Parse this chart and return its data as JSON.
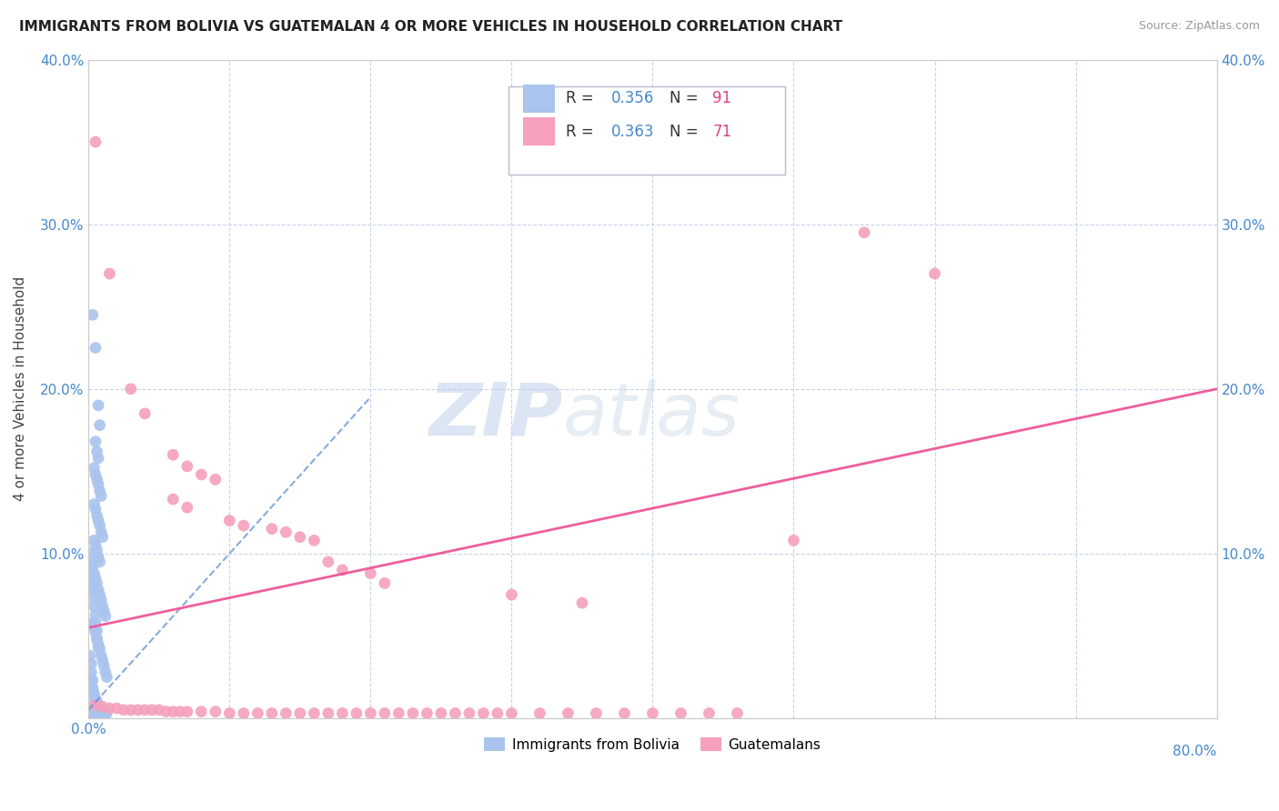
{
  "title": "IMMIGRANTS FROM BOLIVIA VS GUATEMALAN 4 OR MORE VEHICLES IN HOUSEHOLD CORRELATION CHART",
  "source": "Source: ZipAtlas.com",
  "ylabel": "4 or more Vehicles in Household",
  "xlim": [
    0.0,
    0.8
  ],
  "ylim": [
    0.0,
    0.4
  ],
  "xtick_labels": [
    "0.0%",
    "",
    "",
    "",
    "",
    "",
    "",
    "",
    "80.0%"
  ],
  "xtick_vals": [
    0.0,
    0.1,
    0.2,
    0.3,
    0.4,
    0.5,
    0.6,
    0.7,
    0.8
  ],
  "ytick_labels": [
    "",
    "10.0%",
    "20.0%",
    "30.0%",
    "40.0%"
  ],
  "ytick_vals": [
    0.0,
    0.1,
    0.2,
    0.3,
    0.4
  ],
  "right_ytick_labels": [
    "",
    "10.0%",
    "20.0%",
    "30.0%",
    "40.0%"
  ],
  "bolivia_R": 0.356,
  "bolivia_N": 91,
  "guatemalan_R": 0.363,
  "guatemalan_N": 71,
  "bolivia_color": "#aac4ee",
  "guatemalan_color": "#f5a0bc",
  "bolivia_line_color": "#5588cc",
  "guatemalan_line_color": "#ee5599",
  "legend_R_color": "#4488cc",
  "legend_N_color": "#dd4488",
  "watermark": "ZIPatlas",
  "background_color": "#ffffff",
  "grid_color": "#c8d4e8",
  "bolivia_scatter": [
    [
      0.003,
      0.245
    ],
    [
      0.005,
      0.225
    ],
    [
      0.007,
      0.19
    ],
    [
      0.008,
      0.178
    ],
    [
      0.005,
      0.168
    ],
    [
      0.006,
      0.162
    ],
    [
      0.007,
      0.158
    ],
    [
      0.004,
      0.152
    ],
    [
      0.005,
      0.148
    ],
    [
      0.006,
      0.145
    ],
    [
      0.007,
      0.142
    ],
    [
      0.008,
      0.138
    ],
    [
      0.009,
      0.135
    ],
    [
      0.004,
      0.13
    ],
    [
      0.005,
      0.127
    ],
    [
      0.006,
      0.123
    ],
    [
      0.007,
      0.12
    ],
    [
      0.008,
      0.117
    ],
    [
      0.009,
      0.113
    ],
    [
      0.01,
      0.11
    ],
    [
      0.004,
      0.108
    ],
    [
      0.005,
      0.105
    ],
    [
      0.006,
      0.102
    ],
    [
      0.007,
      0.098
    ],
    [
      0.008,
      0.095
    ],
    [
      0.003,
      0.092
    ],
    [
      0.004,
      0.088
    ],
    [
      0.005,
      0.085
    ],
    [
      0.006,
      0.082
    ],
    [
      0.007,
      0.078
    ],
    [
      0.008,
      0.075
    ],
    [
      0.009,
      0.072
    ],
    [
      0.01,
      0.068
    ],
    [
      0.011,
      0.065
    ],
    [
      0.012,
      0.062
    ],
    [
      0.003,
      0.058
    ],
    [
      0.004,
      0.055
    ],
    [
      0.005,
      0.052
    ],
    [
      0.006,
      0.048
    ],
    [
      0.007,
      0.045
    ],
    [
      0.008,
      0.042
    ],
    [
      0.009,
      0.038
    ],
    [
      0.01,
      0.035
    ],
    [
      0.011,
      0.032
    ],
    [
      0.012,
      0.028
    ],
    [
      0.013,
      0.025
    ],
    [
      0.002,
      0.022
    ],
    [
      0.003,
      0.018
    ],
    [
      0.004,
      0.015
    ],
    [
      0.005,
      0.012
    ],
    [
      0.006,
      0.01
    ],
    [
      0.007,
      0.008
    ],
    [
      0.008,
      0.006
    ],
    [
      0.009,
      0.005
    ],
    [
      0.01,
      0.004
    ],
    [
      0.011,
      0.003
    ],
    [
      0.012,
      0.003
    ],
    [
      0.013,
      0.003
    ],
    [
      0.001,
      0.1
    ],
    [
      0.002,
      0.095
    ],
    [
      0.002,
      0.088
    ],
    [
      0.003,
      0.082
    ],
    [
      0.003,
      0.078
    ],
    [
      0.004,
      0.073
    ],
    [
      0.004,
      0.068
    ],
    [
      0.005,
      0.063
    ],
    [
      0.005,
      0.058
    ],
    [
      0.006,
      0.053
    ],
    [
      0.006,
      0.048
    ],
    [
      0.007,
      0.043
    ],
    [
      0.001,
      0.038
    ],
    [
      0.002,
      0.033
    ],
    [
      0.002,
      0.028
    ],
    [
      0.003,
      0.023
    ],
    [
      0.003,
      0.018
    ],
    [
      0.004,
      0.013
    ],
    [
      0.004,
      0.008
    ],
    [
      0.005,
      0.006
    ],
    [
      0.006,
      0.005
    ],
    [
      0.001,
      0.003
    ],
    [
      0.002,
      0.003
    ],
    [
      0.003,
      0.003
    ],
    [
      0.004,
      0.003
    ],
    [
      0.005,
      0.003
    ],
    [
      0.006,
      0.003
    ],
    [
      0.007,
      0.003
    ],
    [
      0.008,
      0.003
    ],
    [
      0.009,
      0.003
    ],
    [
      0.01,
      0.003
    ],
    [
      0.011,
      0.003
    ]
  ],
  "guatemalan_scatter": [
    [
      0.005,
      0.35
    ],
    [
      0.015,
      0.27
    ],
    [
      0.03,
      0.2
    ],
    [
      0.04,
      0.185
    ],
    [
      0.06,
      0.16
    ],
    [
      0.07,
      0.153
    ],
    [
      0.08,
      0.148
    ],
    [
      0.09,
      0.145
    ],
    [
      0.06,
      0.133
    ],
    [
      0.07,
      0.128
    ],
    [
      0.1,
      0.12
    ],
    [
      0.11,
      0.117
    ],
    [
      0.13,
      0.115
    ],
    [
      0.14,
      0.113
    ],
    [
      0.15,
      0.11
    ],
    [
      0.16,
      0.108
    ],
    [
      0.17,
      0.095
    ],
    [
      0.18,
      0.09
    ],
    [
      0.2,
      0.088
    ],
    [
      0.21,
      0.082
    ],
    [
      0.3,
      0.075
    ],
    [
      0.35,
      0.07
    ],
    [
      0.5,
      0.108
    ],
    [
      0.55,
      0.295
    ],
    [
      0.6,
      0.27
    ],
    [
      0.005,
      0.008
    ],
    [
      0.01,
      0.007
    ],
    [
      0.015,
      0.006
    ],
    [
      0.02,
      0.006
    ],
    [
      0.025,
      0.005
    ],
    [
      0.03,
      0.005
    ],
    [
      0.035,
      0.005
    ],
    [
      0.04,
      0.005
    ],
    [
      0.045,
      0.005
    ],
    [
      0.05,
      0.005
    ],
    [
      0.055,
      0.004
    ],
    [
      0.06,
      0.004
    ],
    [
      0.065,
      0.004
    ],
    [
      0.07,
      0.004
    ],
    [
      0.08,
      0.004
    ],
    [
      0.09,
      0.004
    ],
    [
      0.1,
      0.003
    ],
    [
      0.11,
      0.003
    ],
    [
      0.12,
      0.003
    ],
    [
      0.13,
      0.003
    ],
    [
      0.14,
      0.003
    ],
    [
      0.15,
      0.003
    ],
    [
      0.16,
      0.003
    ],
    [
      0.17,
      0.003
    ],
    [
      0.18,
      0.003
    ],
    [
      0.19,
      0.003
    ],
    [
      0.2,
      0.003
    ],
    [
      0.21,
      0.003
    ],
    [
      0.22,
      0.003
    ],
    [
      0.23,
      0.003
    ],
    [
      0.24,
      0.003
    ],
    [
      0.25,
      0.003
    ],
    [
      0.26,
      0.003
    ],
    [
      0.27,
      0.003
    ],
    [
      0.28,
      0.003
    ],
    [
      0.29,
      0.003
    ],
    [
      0.3,
      0.003
    ],
    [
      0.32,
      0.003
    ],
    [
      0.34,
      0.003
    ],
    [
      0.36,
      0.003
    ],
    [
      0.38,
      0.003
    ],
    [
      0.4,
      0.003
    ],
    [
      0.42,
      0.003
    ],
    [
      0.44,
      0.003
    ],
    [
      0.46,
      0.003
    ]
  ],
  "bolivia_trend_x": [
    0.0,
    0.2
  ],
  "bolivia_trend_y": [
    0.005,
    0.195
  ],
  "guatemalan_trend_x": [
    0.0,
    0.8
  ],
  "guatemalan_trend_y": [
    0.055,
    0.2
  ]
}
